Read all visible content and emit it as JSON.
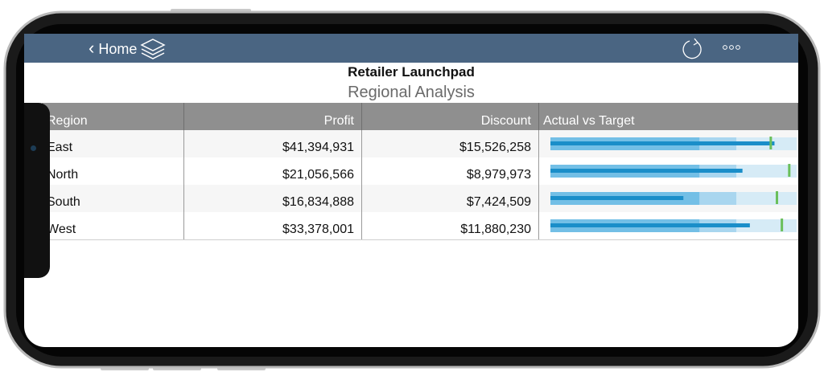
{
  "header": {
    "back": "Home",
    "title": "Retailer Launchpad",
    "subtitle": "Regional Analysis"
  },
  "table": {
    "columns": [
      "Region",
      "Profit",
      "Discount",
      "Actual vs Target"
    ],
    "rows": [
      [
        "East",
        "$41,394,931",
        "$15,526,258"
      ],
      [
        "North",
        "$21,056,566",
        "$8,979,973"
      ],
      [
        "South",
        "$16,834,888",
        "$7,424,509"
      ],
      [
        "West",
        "$33,378,001",
        "$11,880,230"
      ]
    ],
    "bullets": [
      {
        "actual": 91,
        "target": 89.5
      },
      {
        "actual": 78,
        "target": 97
      },
      {
        "actual": 54,
        "target": 92
      },
      {
        "actual": 81,
        "target": 94
      }
    ]
  }
}
